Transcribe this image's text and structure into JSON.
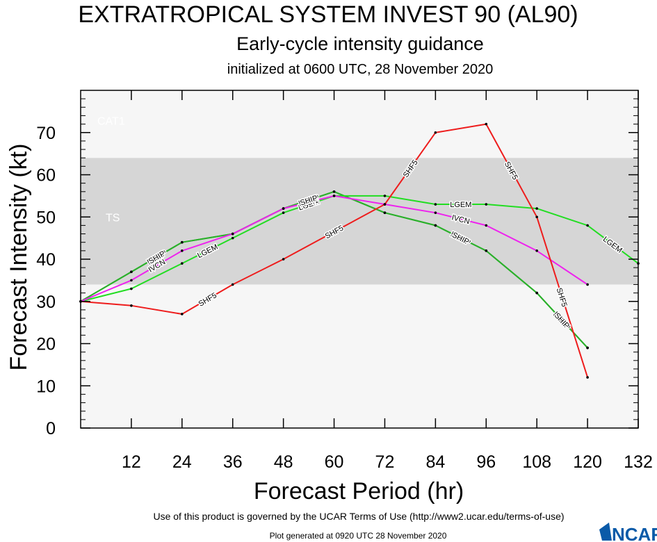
{
  "colors": {
    "SHF5": "#ee1c1c",
    "LGEM": "#22dd22",
    "IVCN": "#ee22ee",
    "DSHP": "#2ab02a",
    "SHIP": "#2ab02a",
    "band_bg": "#f6f6f6",
    "band_ts": "#d6d6d6",
    "ncar_blue": "#0a5aa8"
  },
  "chart_data": {
    "type": "line",
    "title": "EXTRATROPICAL SYSTEM INVEST 90 (AL90)",
    "subtitle": "Early-cycle intensity guidance",
    "initialized": "initialized at 0600 UTC, 28 November 2020",
    "xlabel": "Forecast Period (hr)",
    "ylabel": "Forecast Intensity (kt)",
    "xlim": [
      0,
      132
    ],
    "ylim": [
      0,
      80
    ],
    "xticks": [
      12,
      24,
      36,
      48,
      60,
      72,
      84,
      96,
      108,
      120,
      132
    ],
    "yticks": [
      0,
      10,
      20,
      30,
      40,
      50,
      60,
      70
    ],
    "bands": [
      {
        "name": "TS",
        "from": 34,
        "to": 64
      },
      {
        "name": "CAT1",
        "from": 64,
        "to": 83
      }
    ],
    "series": [
      {
        "name": "SHF5",
        "x": [
          0,
          12,
          24,
          36,
          48,
          72,
          84,
          96,
          108,
          120
        ],
        "values": [
          30,
          29,
          27,
          34,
          40,
          53,
          70,
          72,
          50,
          12
        ]
      },
      {
        "name": "LGEM",
        "x": [
          0,
          12,
          24,
          36,
          48,
          60,
          72,
          84,
          96,
          108,
          120,
          132
        ],
        "values": [
          30,
          33,
          39,
          45,
          51,
          55,
          55,
          53,
          53,
          52,
          48,
          39
        ]
      },
      {
        "name": "IVCN",
        "x": [
          0,
          12,
          24,
          36,
          48,
          60,
          72,
          84,
          96,
          108,
          120
        ],
        "values": [
          30,
          35,
          42,
          46,
          52,
          55,
          53,
          51,
          48,
          42,
          34
        ]
      },
      {
        "name": "DSHP",
        "x": [
          0,
          12,
          24,
          36,
          48,
          60,
          72,
          84,
          96,
          108,
          120
        ],
        "values": [
          30,
          37,
          44,
          46,
          52,
          56,
          51,
          48,
          42,
          32,
          19
        ]
      },
      {
        "name": "SHIP",
        "x": [
          0,
          12,
          24,
          36,
          48,
          60,
          72,
          84,
          96,
          108,
          120
        ],
        "values": [
          30,
          37,
          44,
          46,
          52,
          56,
          51,
          48,
          42,
          32,
          19
        ]
      }
    ]
  },
  "footer": {
    "terms": "Use of this product is governed by the UCAR Terms of Use (http://www2.ucar.edu/terms-of-use)",
    "generated": "Plot generated at 0920 UTC   28 November 2020",
    "logo_text": "NCAR"
  }
}
